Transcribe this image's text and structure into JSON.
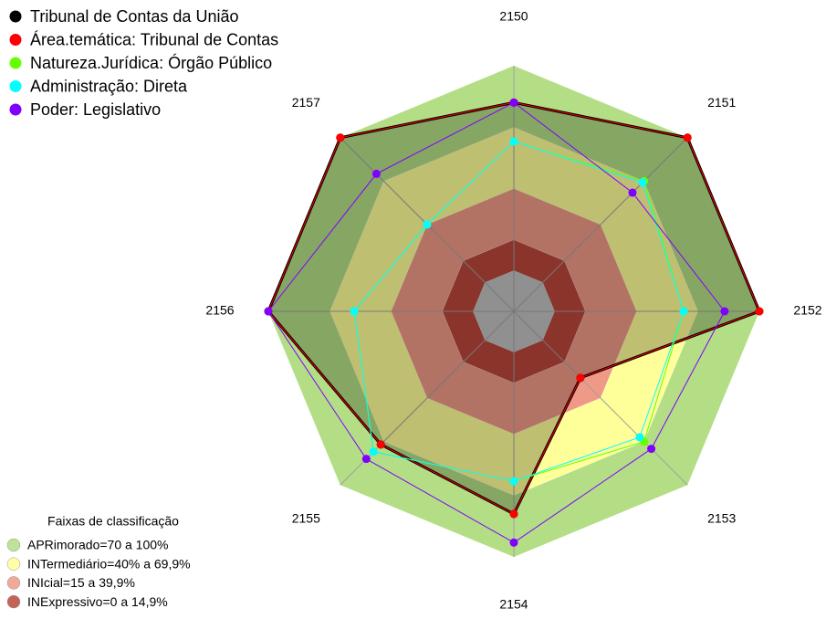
{
  "chart_data": {
    "type": "radar",
    "categories": [
      "2150",
      "2151",
      "2152",
      "2153",
      "2154",
      "2155",
      "2156",
      "2157"
    ],
    "rlim": [
      -20,
      100
    ],
    "series": [
      {
        "name": "Tribunal de Contas da União",
        "color": "#000000",
        "filled": true,
        "values": [
          82,
          100,
          100,
          26,
          79,
          72,
          100,
          100
        ]
      },
      {
        "name": "Área.temática: Tribunal de Contas",
        "color": "#ff0000",
        "values": [
          82,
          100,
          100,
          26,
          79,
          72,
          100,
          100
        ]
      },
      {
        "name": "Natureza.Jurídica: Órgão Público",
        "color": "#66ff00",
        "values": [
          63,
          70,
          63,
          70,
          63,
          77,
          58,
          40
        ]
      },
      {
        "name": "Administração: Direta",
        "color": "#00ffff",
        "values": [
          63,
          69,
          63,
          67,
          63,
          77,
          58,
          40
        ]
      },
      {
        "name": "Poder: Legislativo",
        "color": "#8000ff",
        "values": [
          82,
          62,
          83,
          75,
          93,
          82,
          100,
          75
        ]
      }
    ],
    "bands_title": "Faixas de classificação",
    "bands": [
      {
        "label": "APRimorado=70 a 100%",
        "from": 70,
        "to": 100,
        "color": "#b3de86"
      },
      {
        "label": "INTermediário=40% a 69,9%",
        "from": 40,
        "to": 69.9,
        "color": "#ffff99"
      },
      {
        "label": "INIcial=15 a 39,9%",
        "from": 15,
        "to": 39.9,
        "color": "#ef9a86"
      },
      {
        "label": "INExpressivo=0 a 14,9%",
        "from": 0,
        "to": 14.9,
        "color": "#b8463a"
      }
    ]
  }
}
